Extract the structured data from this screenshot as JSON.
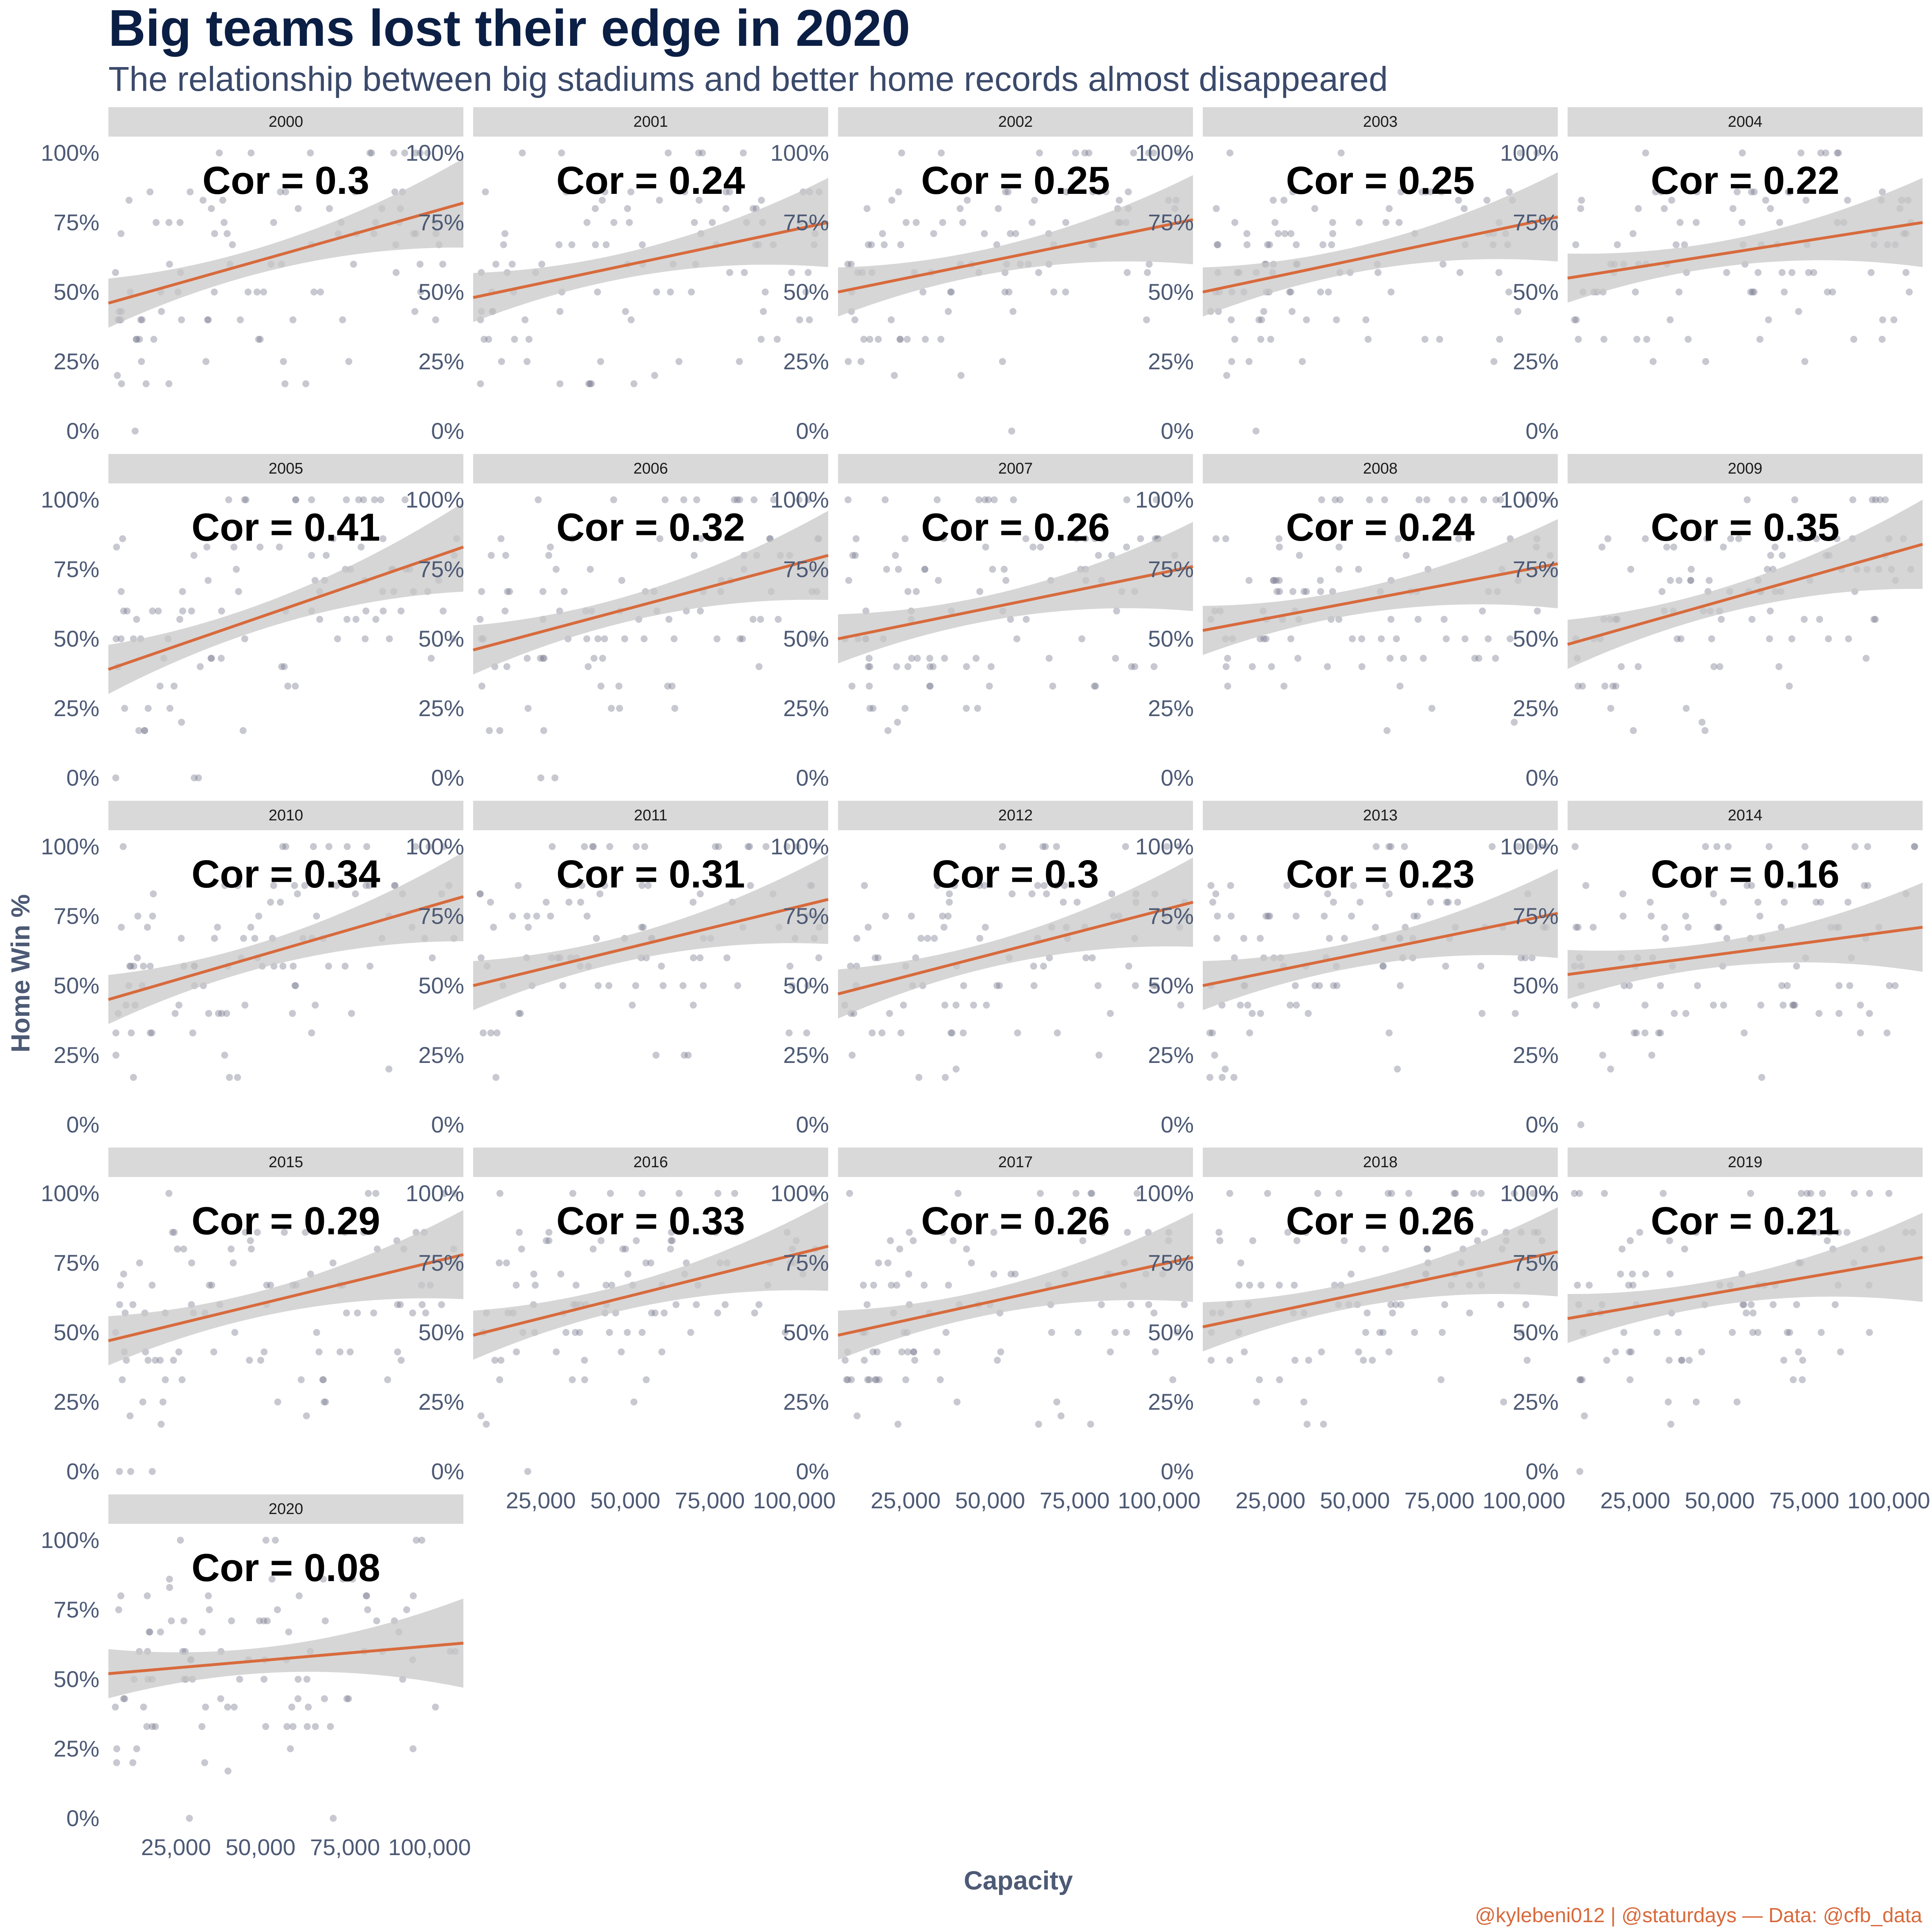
{
  "chart_data": {
    "type": "scatter",
    "title": "Big teams lost their edge in 2020",
    "subtitle": "The relationship between big stadiums and better home records almost disappeared",
    "xlabel": "Capacity",
    "ylabel": "Home Win %",
    "caption": "@kylebeni012 | @staturdays — Data: @cfb_data",
    "xlim": [
      5000,
      110000
    ],
    "ylim": [
      0,
      1
    ],
    "x_ticks": [
      25000,
      50000,
      75000,
      100000
    ],
    "x_tick_labels": [
      "25,000",
      "50,000",
      "75,000",
      "100,000"
    ],
    "y_ticks": [
      0,
      0.25,
      0.5,
      0.75,
      1
    ],
    "y_tick_labels": [
      "0%",
      "25%",
      "50%",
      "75%",
      "100%"
    ],
    "point_color": "#7a7d8f",
    "line_color": "#d86a3c",
    "band_color": "#c8c8c8",
    "strip_color": "#d9d9d9",
    "facets": [
      {
        "year": "2000",
        "label": "Cor = 0.3",
        "fit_start": 0.46,
        "fit_end": 0.82
      },
      {
        "year": "2001",
        "label": "Cor = 0.24",
        "fit_start": 0.48,
        "fit_end": 0.75
      },
      {
        "year": "2002",
        "label": "Cor = 0.25",
        "fit_start": 0.5,
        "fit_end": 0.76
      },
      {
        "year": "2003",
        "label": "Cor = 0.25",
        "fit_start": 0.5,
        "fit_end": 0.77
      },
      {
        "year": "2004",
        "label": "Cor = 0.22",
        "fit_start": 0.55,
        "fit_end": 0.75
      },
      {
        "year": "2005",
        "label": "Cor = 0.41",
        "fit_start": 0.39,
        "fit_end": 0.83
      },
      {
        "year": "2006",
        "label": "Cor = 0.32",
        "fit_start": 0.46,
        "fit_end": 0.8
      },
      {
        "year": "2007",
        "label": "Cor = 0.26",
        "fit_start": 0.5,
        "fit_end": 0.76
      },
      {
        "year": "2008",
        "label": "Cor = 0.24",
        "fit_start": 0.53,
        "fit_end": 0.77
      },
      {
        "year": "2009",
        "label": "Cor = 0.35",
        "fit_start": 0.48,
        "fit_end": 0.84
      },
      {
        "year": "2010",
        "label": "Cor = 0.34",
        "fit_start": 0.45,
        "fit_end": 0.82
      },
      {
        "year": "2011",
        "label": "Cor = 0.31",
        "fit_start": 0.5,
        "fit_end": 0.81
      },
      {
        "year": "2012",
        "label": "Cor = 0.3",
        "fit_start": 0.47,
        "fit_end": 0.8
      },
      {
        "year": "2013",
        "label": "Cor = 0.23",
        "fit_start": 0.5,
        "fit_end": 0.76
      },
      {
        "year": "2014",
        "label": "Cor = 0.16",
        "fit_start": 0.54,
        "fit_end": 0.71
      },
      {
        "year": "2015",
        "label": "Cor = 0.29",
        "fit_start": 0.47,
        "fit_end": 0.78
      },
      {
        "year": "2016",
        "label": "Cor = 0.33",
        "fit_start": 0.49,
        "fit_end": 0.81
      },
      {
        "year": "2017",
        "label": "Cor = 0.26",
        "fit_start": 0.49,
        "fit_end": 0.77
      },
      {
        "year": "2018",
        "label": "Cor = 0.26",
        "fit_start": 0.52,
        "fit_end": 0.79
      },
      {
        "year": "2019",
        "label": "Cor = 0.21",
        "fit_start": 0.55,
        "fit_end": 0.77
      },
      {
        "year": "2020",
        "label": "Cor = 0.08",
        "fit_start": 0.52,
        "fit_end": 0.63
      }
    ]
  }
}
